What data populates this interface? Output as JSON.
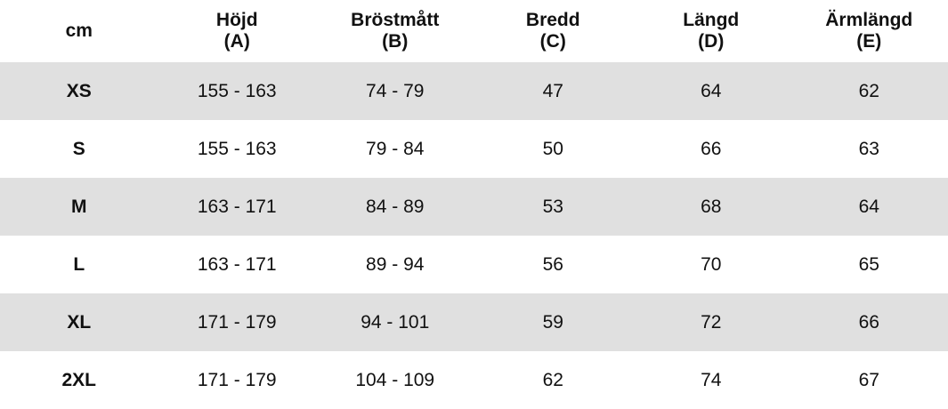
{
  "table": {
    "header": [
      {
        "label": "cm"
      },
      {
        "label": "Höjd",
        "code": "(A)"
      },
      {
        "label": "Bröstmått",
        "code": "(B)"
      },
      {
        "label": "Bredd",
        "code": "(C)"
      },
      {
        "label": "Längd",
        "code": "(D)"
      },
      {
        "label": "Ärmlängd",
        "code": "(E)"
      }
    ],
    "rows": [
      [
        "XS",
        "155 - 163",
        "74 - 79",
        47,
        64,
        62
      ],
      [
        "S",
        "155 - 163",
        "79 - 84",
        50,
        66,
        63
      ],
      [
        "M",
        "163 - 171",
        "84 - 89",
        53,
        68,
        64
      ],
      [
        "L",
        "163 - 171",
        "89 - 94",
        56,
        70,
        65
      ],
      [
        "XL",
        "171 - 179",
        "94 - 101",
        59,
        72,
        66
      ],
      [
        "2XL",
        "171 - 179",
        "104 - 109",
        62,
        74,
        67
      ]
    ]
  }
}
